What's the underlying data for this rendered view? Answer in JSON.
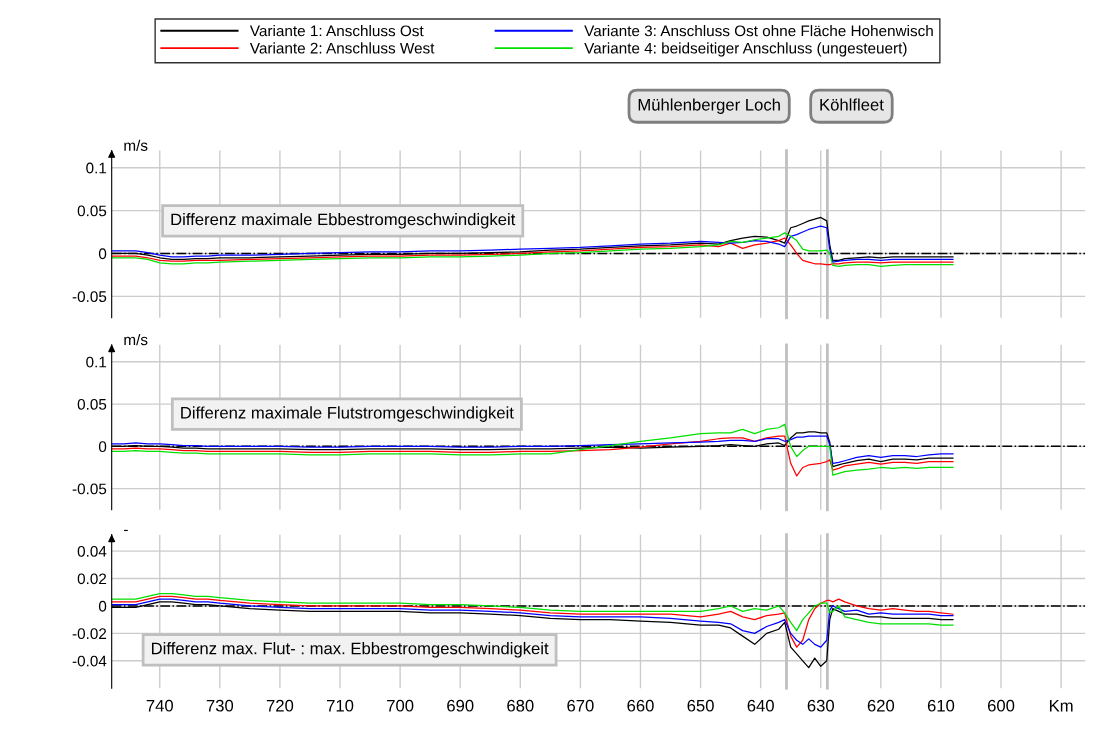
{
  "chart_data": [
    {
      "type": "line",
      "ylabel": "m/s",
      "legend": "top",
      "grid": true,
      "tick_labels": "y",
      "line_style": "solid",
      "xlim": [
        748,
        586
      ],
      "xticks": [
        740,
        730,
        720,
        710,
        700,
        690,
        680,
        670,
        660,
        650,
        640,
        630,
        620,
        610,
        600,
        590
      ],
      "ylim": [
        -0.075,
        0.12
      ],
      "yticks": [
        -0.05,
        0,
        0.05,
        0.1
      ],
      "annotations": [
        "Differenz maximale Ebbestromgeschwindigkeit"
      ],
      "ref_lines": [
        {
          "axis": "y",
          "value": 0,
          "color": "#000000",
          "line_style": "dashdot"
        },
        {
          "axis": "x",
          "value": 635.7,
          "label": "Mühlenberger Loch",
          "color": "#bfbfbf"
        },
        {
          "axis": "x",
          "value": 628.9,
          "label": "Köhlfleet",
          "color": "#bfbfbf"
        }
      ],
      "x": [
        748,
        746,
        744,
        742,
        740,
        738,
        736,
        734,
        732,
        730,
        725,
        720,
        715,
        710,
        705,
        700,
        695,
        690,
        685,
        680,
        675,
        670,
        665,
        660,
        655,
        650,
        647,
        645,
        643,
        641,
        639,
        637,
        636,
        635,
        634,
        633,
        632,
        631,
        630,
        629,
        628.5,
        628,
        627,
        626,
        624,
        622,
        620,
        618,
        616,
        614,
        612,
        610,
        608
      ],
      "series": [
        {
          "name": "Variante 1: Anschluss Ost",
          "color": "#000000",
          "values": [
            0,
            0,
            0,
            -0.002,
            -0.005,
            -0.007,
            -0.007,
            -0.006,
            -0.006,
            -0.005,
            -0.005,
            -0.004,
            -0.003,
            -0.002,
            -0.001,
            -0.001,
            0,
            0,
            0.001,
            0.002,
            0.004,
            0.005,
            0.007,
            0.009,
            0.01,
            0.012,
            0.011,
            0.015,
            0.018,
            0.02,
            0.019,
            0.015,
            0.012,
            0.03,
            0.032,
            0.035,
            0.038,
            0.04,
            0.042,
            0.038,
            0.01,
            -0.008,
            -0.008,
            -0.006,
            -0.005,
            -0.004,
            -0.005,
            -0.004,
            -0.004,
            -0.004,
            -0.004,
            -0.004,
            -0.004
          ]
        },
        {
          "name": "Variante 2: Anschluss West",
          "color": "#ff0000",
          "values": [
            -0.003,
            -0.003,
            -0.003,
            -0.005,
            -0.008,
            -0.009,
            -0.009,
            -0.008,
            -0.008,
            -0.008,
            -0.007,
            -0.006,
            -0.005,
            -0.004,
            -0.003,
            -0.003,
            -0.002,
            -0.002,
            -0.001,
            0,
            0.002,
            0.003,
            0.005,
            0.007,
            0.008,
            0.01,
            0.008,
            0.012,
            0.006,
            0.01,
            0.012,
            0.015,
            0.018,
            0.01,
            0,
            -0.008,
            -0.01,
            -0.012,
            -0.012,
            -0.013,
            -0.013,
            -0.012,
            -0.012,
            -0.011,
            -0.01,
            -0.01,
            -0.011,
            -0.01,
            -0.01,
            -0.01,
            -0.01,
            -0.01,
            -0.01
          ]
        },
        {
          "name": "Variante 3: Anschluss Ost ohne Fläche Hohenwisch",
          "color": "#0000ff",
          "values": [
            0.003,
            0.003,
            0.003,
            0.001,
            -0.002,
            -0.004,
            -0.004,
            -0.003,
            -0.003,
            -0.002,
            -0.002,
            -0.001,
            0,
            0.001,
            0.002,
            0.002,
            0.003,
            0.003,
            0.004,
            0.005,
            0.006,
            0.007,
            0.009,
            0.011,
            0.012,
            0.014,
            0.013,
            0.012,
            0.013,
            0.015,
            0.014,
            0.011,
            0.008,
            0.02,
            0.022,
            0.025,
            0.028,
            0.03,
            0.032,
            0.03,
            0.005,
            -0.01,
            -0.009,
            -0.008,
            -0.007,
            -0.007,
            -0.008,
            -0.007,
            -0.007,
            -0.007,
            -0.007,
            -0.007,
            -0.007
          ]
        },
        {
          "name": "Variante 4: beidseitiger Anschluss (ungesteuert)",
          "color": "#00e000",
          "values": [
            -0.005,
            -0.005,
            -0.005,
            -0.007,
            -0.011,
            -0.012,
            -0.012,
            -0.011,
            -0.011,
            -0.01,
            -0.009,
            -0.008,
            -0.007,
            -0.006,
            -0.005,
            -0.005,
            -0.004,
            -0.004,
            -0.003,
            -0.002,
            0,
            0.001,
            0.003,
            0.005,
            0.006,
            0.008,
            0.01,
            0.014,
            0.013,
            0.016,
            0.018,
            0.02,
            0.024,
            0.02,
            0.015,
            0.005,
            0.003,
            0.003,
            0.003,
            0.004,
            0,
            -0.014,
            -0.015,
            -0.014,
            -0.013,
            -0.013,
            -0.015,
            -0.014,
            -0.013,
            -0.013,
            -0.013,
            -0.013,
            -0.013
          ]
        }
      ]
    },
    {
      "type": "line",
      "ylabel": "m/s",
      "grid": true,
      "tick_labels": "y",
      "line_style": "solid",
      "xlim": [
        748,
        586
      ],
      "xticks": [
        740,
        730,
        720,
        710,
        700,
        690,
        680,
        670,
        660,
        650,
        640,
        630,
        620,
        610,
        600,
        590
      ],
      "ylim": [
        -0.075,
        0.12
      ],
      "yticks": [
        -0.05,
        0,
        0.05,
        0.1
      ],
      "annotations": [
        "Differenz maximale Flutstromgeschwindigkeit"
      ],
      "ref_lines": [
        {
          "axis": "y",
          "value": 0,
          "color": "#000000",
          "line_style": "dashdot"
        },
        {
          "axis": "x",
          "value": 635.7,
          "color": "#bfbfbf"
        },
        {
          "axis": "x",
          "value": 628.9,
          "color": "#bfbfbf"
        }
      ],
      "x": [
        748,
        746,
        744,
        742,
        740,
        738,
        736,
        734,
        732,
        730,
        725,
        720,
        715,
        710,
        705,
        700,
        695,
        690,
        685,
        680,
        675,
        670,
        665,
        660,
        655,
        650,
        647,
        645,
        643,
        641,
        639,
        637,
        636,
        635,
        634,
        633,
        632,
        631,
        630,
        629,
        628.5,
        628,
        627,
        626,
        624,
        622,
        620,
        618,
        616,
        614,
        612,
        610,
        608
      ],
      "series": [
        {
          "color": "#000000",
          "values": [
            0,
            0,
            0.001,
            0,
            0,
            -0.001,
            -0.002,
            -0.002,
            -0.003,
            -0.003,
            -0.003,
            -0.003,
            -0.004,
            -0.004,
            -0.003,
            -0.003,
            -0.003,
            -0.004,
            -0.004,
            -0.003,
            -0.003,
            -0.002,
            -0.001,
            -0.002,
            -0.001,
            0,
            0.001,
            0.002,
            0.001,
            0,
            0.003,
            0.004,
            0.001,
            0.01,
            0.016,
            0.016,
            0.017,
            0.017,
            0.016,
            0.016,
            0.005,
            -0.024,
            -0.022,
            -0.02,
            -0.017,
            -0.015,
            -0.018,
            -0.015,
            -0.015,
            -0.016,
            -0.014,
            -0.014,
            -0.014
          ]
        },
        {
          "color": "#ff0000",
          "values": [
            -0.003,
            -0.003,
            -0.002,
            -0.003,
            -0.003,
            -0.004,
            -0.005,
            -0.005,
            -0.006,
            -0.006,
            -0.006,
            -0.006,
            -0.007,
            -0.007,
            -0.006,
            -0.006,
            -0.006,
            -0.007,
            -0.007,
            -0.006,
            -0.006,
            -0.005,
            -0.004,
            -0.001,
            0.003,
            0.006,
            0.009,
            0.01,
            0.01,
            0.006,
            0.01,
            0.012,
            0.012,
            -0.02,
            -0.035,
            -0.025,
            -0.022,
            -0.021,
            -0.02,
            -0.018,
            -0.016,
            -0.028,
            -0.026,
            -0.023,
            -0.021,
            -0.019,
            -0.021,
            -0.019,
            -0.019,
            -0.02,
            -0.018,
            -0.018,
            -0.018
          ]
        },
        {
          "color": "#0000ff",
          "values": [
            0.003,
            0.003,
            0.004,
            0.003,
            0.003,
            0.002,
            0.001,
            0.001,
            0,
            0,
            0,
            0,
            -0.001,
            -0.001,
            0,
            0,
            0,
            -0.001,
            -0.001,
            0,
            0,
            0.001,
            0.002,
            0.003,
            0.004,
            0.005,
            0.006,
            0.007,
            0.007,
            0.006,
            0.009,
            0.009,
            0.006,
            0.008,
            0.011,
            0.011,
            0.012,
            0.012,
            0.012,
            0.012,
            0.002,
            -0.02,
            -0.019,
            -0.017,
            -0.013,
            -0.011,
            -0.013,
            -0.011,
            -0.011,
            -0.012,
            -0.01,
            -0.009,
            -0.009
          ]
        },
        {
          "color": "#00e000",
          "values": [
            -0.006,
            -0.006,
            -0.005,
            -0.006,
            -0.006,
            -0.007,
            -0.008,
            -0.008,
            -0.009,
            -0.009,
            -0.009,
            -0.009,
            -0.01,
            -0.01,
            -0.009,
            -0.009,
            -0.009,
            -0.01,
            -0.01,
            -0.009,
            -0.009,
            -0.004,
            0.001,
            0.006,
            0.01,
            0.015,
            0.016,
            0.016,
            0.02,
            0.015,
            0.02,
            0.022,
            0.026,
            0,
            -0.012,
            -0.005,
            0,
            0,
            0,
            0,
            0,
            -0.034,
            -0.032,
            -0.03,
            -0.028,
            -0.027,
            -0.025,
            -0.026,
            -0.025,
            -0.026,
            -0.025,
            -0.025,
            -0.025
          ]
        }
      ]
    },
    {
      "type": "line",
      "ylabel": "-",
      "grid": true,
      "line_style": "solid",
      "xlim": [
        748,
        586
      ],
      "xticks": [
        740,
        730,
        720,
        710,
        700,
        690,
        680,
        670,
        660,
        650,
        640,
        630,
        620,
        610,
        600,
        {
          "value": 590,
          "label": "Km"
        }
      ],
      "ylim": [
        -0.06,
        0.052
      ],
      "yticks": [
        -0.04,
        -0.02,
        0,
        0.02,
        0.04
      ],
      "annotations": [
        "Differenz max. Flut- : max. Ebbestromgeschwindigkeit"
      ],
      "ref_lines": [
        {
          "axis": "y",
          "value": 0,
          "color": "#000000",
          "line_style": "dashdot"
        },
        {
          "axis": "x",
          "value": 635.7,
          "color": "#bfbfbf"
        },
        {
          "axis": "x",
          "value": 628.9,
          "color": "#bfbfbf"
        }
      ],
      "x": [
        748,
        746,
        744,
        742,
        740,
        738,
        736,
        734,
        732,
        730,
        725,
        720,
        715,
        710,
        705,
        700,
        695,
        690,
        685,
        680,
        675,
        670,
        665,
        660,
        655,
        650,
        647,
        645,
        643,
        641,
        639,
        637,
        636,
        635,
        634,
        633,
        632,
        631,
        630,
        629,
        628.5,
        628,
        627,
        626,
        624,
        622,
        620,
        618,
        616,
        614,
        612,
        610,
        608
      ],
      "series": [
        {
          "color": "#000000",
          "values": [
            -0.001,
            -0.001,
            -0.001,
            0.001,
            0.003,
            0.003,
            0.002,
            0.001,
            0.001,
            0,
            -0.002,
            -0.003,
            -0.004,
            -0.004,
            -0.004,
            -0.004,
            -0.005,
            -0.005,
            -0.006,
            -0.007,
            -0.009,
            -0.01,
            -0.01,
            -0.011,
            -0.012,
            -0.014,
            -0.014,
            -0.016,
            -0.022,
            -0.028,
            -0.02,
            -0.017,
            -0.012,
            -0.03,
            -0.035,
            -0.04,
            -0.045,
            -0.038,
            -0.044,
            -0.04,
            -0.01,
            -0.002,
            -0.004,
            -0.006,
            -0.006,
            -0.008,
            -0.008,
            -0.009,
            -0.009,
            -0.009,
            -0.009,
            -0.01,
            -0.01
          ]
        },
        {
          "color": "#ff0000",
          "values": [
            0.003,
            0.003,
            0.003,
            0.005,
            0.007,
            0.007,
            0.006,
            0.005,
            0.005,
            0.004,
            0.002,
            0.001,
            0,
            0,
            0,
            0,
            -0.001,
            -0.001,
            -0.002,
            -0.003,
            -0.005,
            -0.006,
            -0.006,
            -0.006,
            -0.006,
            -0.008,
            -0.006,
            -0.004,
            -0.008,
            -0.01,
            -0.007,
            -0.006,
            -0.005,
            -0.022,
            -0.03,
            -0.025,
            -0.01,
            -0.002,
            0.002,
            0.004,
            0.004,
            0.003,
            0.005,
            0.003,
            0,
            -0.002,
            -0.003,
            -0.002,
            -0.003,
            -0.004,
            -0.004,
            -0.005,
            -0.006
          ]
        },
        {
          "color": "#0000ff",
          "values": [
            0.001,
            0.001,
            0.001,
            0.003,
            0.005,
            0.005,
            0.004,
            0.003,
            0.003,
            0.002,
            0,
            -0.001,
            -0.002,
            -0.002,
            -0.002,
            -0.002,
            -0.003,
            -0.003,
            -0.004,
            -0.005,
            -0.007,
            -0.008,
            -0.008,
            -0.008,
            -0.009,
            -0.011,
            -0.012,
            -0.013,
            -0.018,
            -0.02,
            -0.015,
            -0.012,
            -0.01,
            -0.02,
            -0.025,
            -0.028,
            -0.024,
            -0.028,
            -0.03,
            -0.025,
            -0.003,
            0,
            -0.002,
            -0.004,
            -0.003,
            -0.006,
            -0.005,
            -0.006,
            -0.006,
            -0.006,
            -0.006,
            -0.007,
            -0.007
          ]
        },
        {
          "color": "#00e000",
          "values": [
            0.005,
            0.005,
            0.005,
            0.007,
            0.009,
            0.009,
            0.008,
            0.007,
            0.007,
            0.006,
            0.004,
            0.003,
            0.002,
            0.002,
            0.002,
            0.002,
            0.001,
            0.001,
            0,
            -0.001,
            -0.003,
            -0.004,
            -0.004,
            -0.004,
            -0.004,
            -0.004,
            -0.002,
            0,
            -0.004,
            -0.002,
            -0.003,
            0,
            -0.005,
            -0.012,
            -0.018,
            -0.01,
            -0.005,
            0,
            0.002,
            0.002,
            -0.005,
            -0.004,
            0,
            -0.008,
            -0.01,
            -0.012,
            -0.013,
            -0.013,
            -0.013,
            -0.013,
            -0.013,
            -0.014,
            -0.014
          ]
        }
      ]
    }
  ]
}
